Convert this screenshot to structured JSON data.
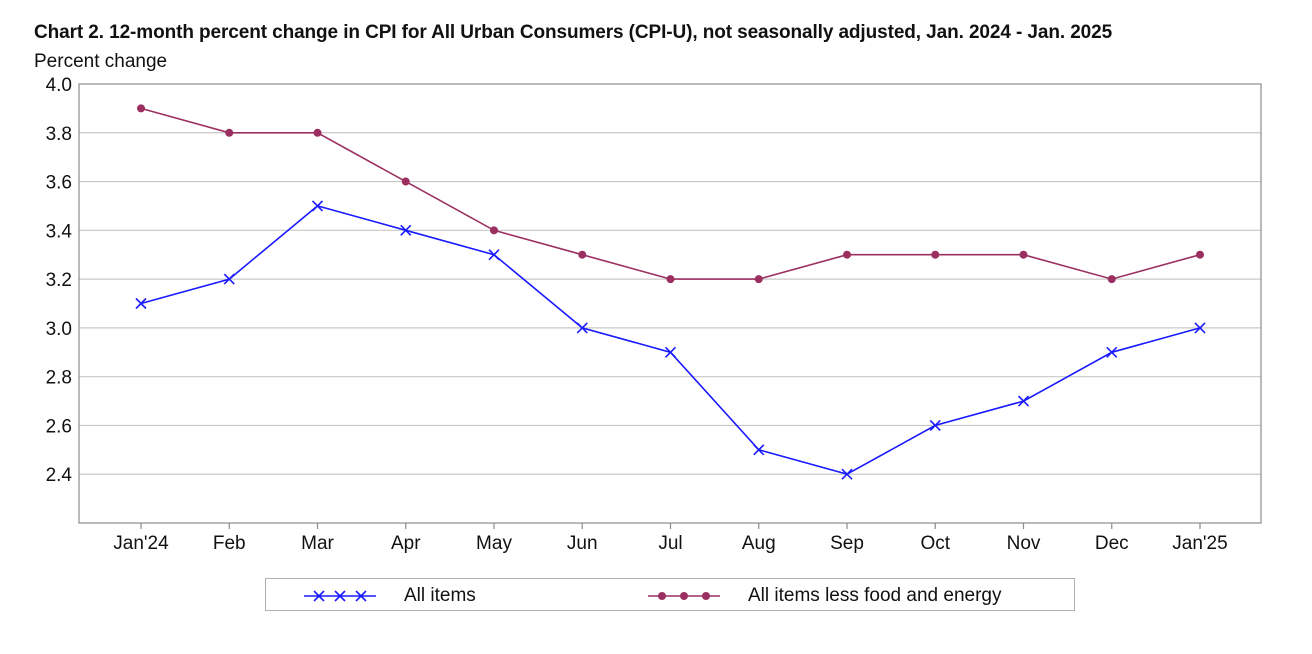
{
  "chart_data": {
    "type": "line",
    "title": "Chart 2. 12-month percent change in CPI for All Urban Consumers (CPI-U), not seasonally adjusted, Jan. 2024 - Jan. 2025",
    "ylabel": "Percent change",
    "xlabel": "",
    "categories": [
      "Jan'24",
      "Feb",
      "Mar",
      "Apr",
      "May",
      "Jun",
      "Jul",
      "Aug",
      "Sep",
      "Oct",
      "Nov",
      "Dec",
      "Jan'25"
    ],
    "ylim": [
      2.2,
      4.0
    ],
    "yticks": [
      "4.0",
      "3.8",
      "3.6",
      "3.4",
      "3.2",
      "3.0",
      "2.8",
      "2.6",
      "2.4"
    ],
    "grid": true,
    "legend_position": "bottom",
    "series": [
      {
        "name": "All items",
        "marker": "x",
        "color": "#1a1aff",
        "values": [
          3.1,
          3.2,
          3.5,
          3.4,
          3.3,
          3.0,
          2.9,
          2.5,
          2.4,
          2.6,
          2.7,
          2.9,
          3.0
        ]
      },
      {
        "name": "All items less food and energy",
        "marker": "circle",
        "color": "#9b3060",
        "values": [
          3.9,
          3.8,
          3.8,
          3.6,
          3.4,
          3.3,
          3.2,
          3.2,
          3.3,
          3.3,
          3.3,
          3.2,
          3.3
        ]
      }
    ]
  }
}
